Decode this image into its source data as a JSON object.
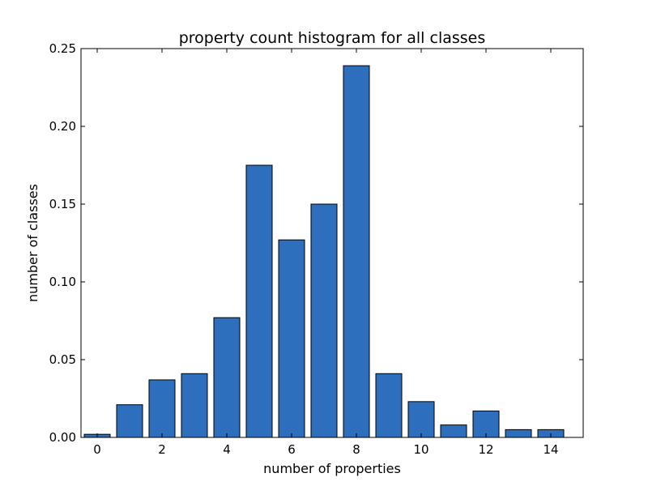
{
  "chart_data": {
    "type": "bar",
    "title": "property count histogram for all classes",
    "xlabel": "number of properties",
    "ylabel": "number of classes",
    "categories": [
      0,
      1,
      2,
      3,
      4,
      5,
      6,
      7,
      8,
      9,
      10,
      11,
      12,
      13,
      14
    ],
    "values": [
      0.002,
      0.021,
      0.037,
      0.041,
      0.077,
      0.175,
      0.127,
      0.15,
      0.239,
      0.041,
      0.023,
      0.008,
      0.017,
      0.005,
      0.005
    ],
    "xlim": [
      -0.5,
      15
    ],
    "ylim": [
      0,
      0.25
    ],
    "xticks": [
      0,
      2,
      4,
      6,
      8,
      10,
      12,
      14
    ],
    "xtick_labels": [
      "0",
      "2",
      "4",
      "6",
      "8",
      "10",
      "12",
      "14"
    ],
    "yticks": [
      0,
      0.05,
      0.1,
      0.15,
      0.2,
      0.25
    ],
    "ytick_labels": [
      "0.00",
      "0.05",
      "0.10",
      "0.15",
      "0.20",
      "0.25"
    ],
    "bar_color": "#2d6fbd",
    "bar_edge_color": "#000000",
    "grid": false,
    "legend": false
  }
}
